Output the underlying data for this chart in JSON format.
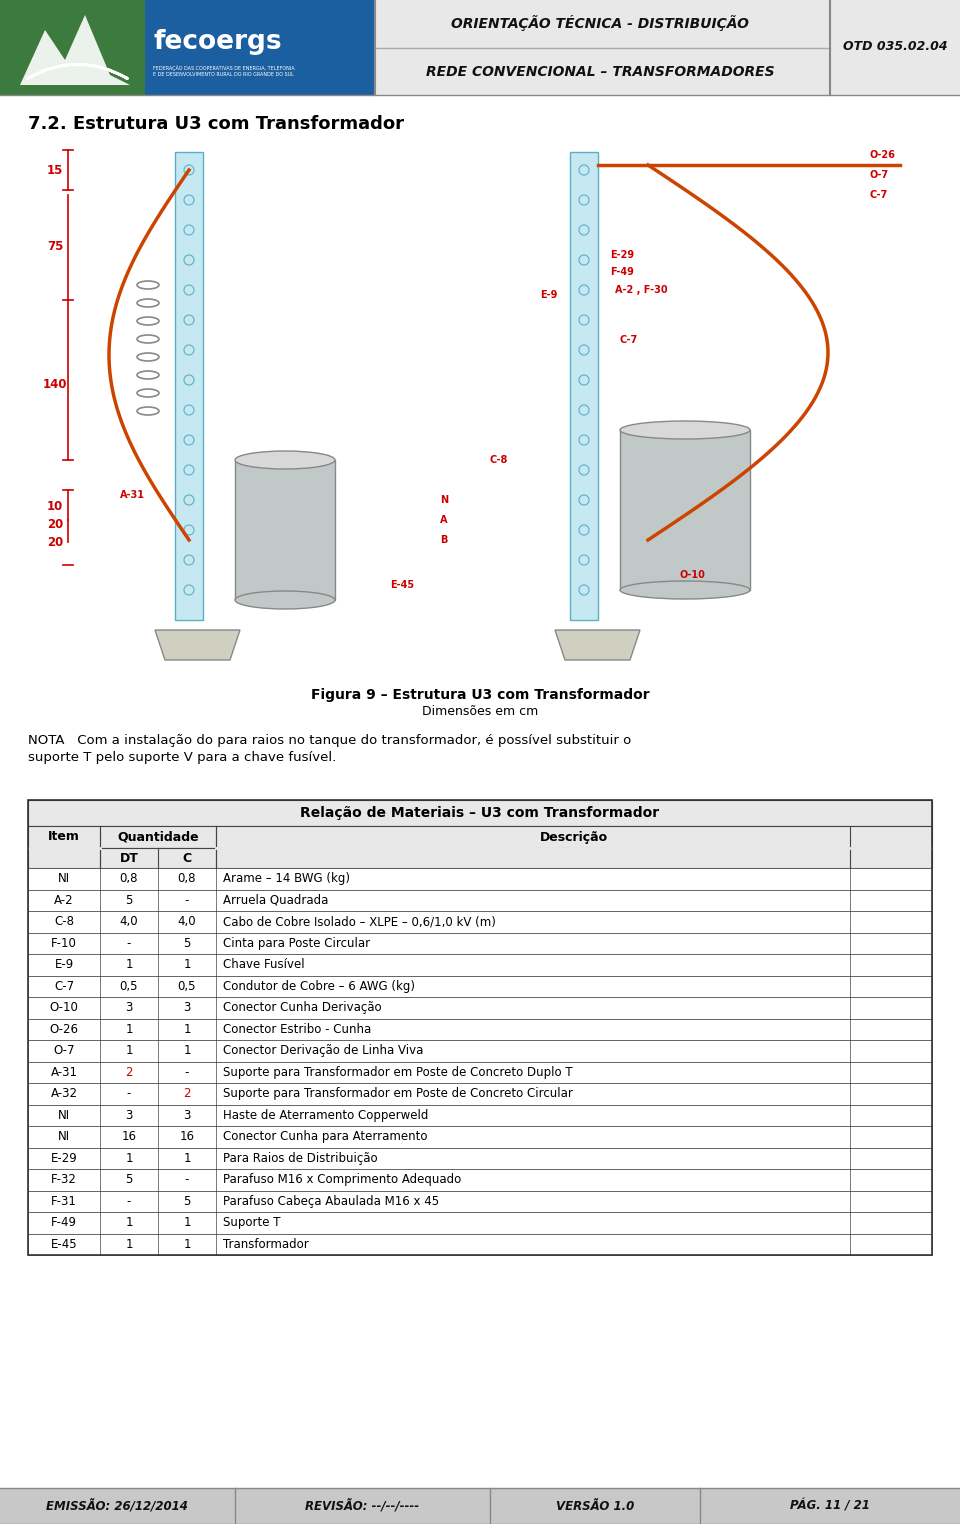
{
  "page_width": 9.6,
  "page_height": 15.24,
  "bg_color": "#ffffff",
  "header": {
    "title1": "ORIENTAÇÃO TÉCNICA - DISTRIBUIÇÃO",
    "title2": "REDE CONVENCIONAL – TRANSFORMADORES",
    "otd": "OTD 035.02.04",
    "green_color": "#3d7a3d",
    "blue_color": "#1c5fa0",
    "mid_bg": "#d8d8d8",
    "right_bg": "#d8d8d8"
  },
  "section_title": "7.2. Estrutura U3 com Transformador",
  "figure_caption1": "Figura 9 – Estrutura U3 com Transformador",
  "figure_caption2": "Dimensões em cm",
  "nota_text": "NOTA   Com a instalação do para raios no tanque do transformador, é possível substituir o suporte T pelo suporte V para a chave fusível.",
  "table_title": "Relação de Materiais – U3 com Transformador",
  "table_rows": [
    [
      "NI",
      "0,8",
      "0,8",
      "Arame – 14 BWG (kg)"
    ],
    [
      "A-2",
      "5",
      "-",
      "Arruela Quadrada"
    ],
    [
      "C-8",
      "4,0",
      "4,0",
      "Cabo de Cobre Isolado – XLPE – 0,6/1,0 kV (m)"
    ],
    [
      "F-10",
      "-",
      "5",
      "Cinta para Poste Circular"
    ],
    [
      "E-9",
      "1",
      "1",
      "Chave Fusível"
    ],
    [
      "C-7",
      "0,5",
      "0,5",
      "Condutor de Cobre – 6 AWG (kg)"
    ],
    [
      "O-10",
      "3",
      "3",
      "Conector Cunha Derivação"
    ],
    [
      "O-26",
      "1",
      "1",
      "Conector Estribo - Cunha"
    ],
    [
      "O-7",
      "1",
      "1",
      "Conector Derivação de Linha Viva"
    ],
    [
      "A-31",
      "2",
      "-",
      "Suporte para Transformador em Poste de Concreto Duplo T"
    ],
    [
      "A-32",
      "-",
      "2",
      "Suporte para Transformador em Poste de Concreto Circular"
    ],
    [
      "NI",
      "3",
      "3",
      "Haste de Aterramento Copperweld"
    ],
    [
      "NI",
      "16",
      "16",
      "Conector Cunha para Aterramento"
    ],
    [
      "E-29",
      "1",
      "1",
      "Para Raios de Distribuição"
    ],
    [
      "F-32",
      "5",
      "-",
      "Parafuso M16 x Comprimento Adequado"
    ],
    [
      "F-31",
      "-",
      "5",
      "Parafuso Cabeça Abaulada M16 x 45"
    ],
    [
      "F-49",
      "1",
      "1",
      "Suporte T"
    ],
    [
      "E-45",
      "1",
      "1",
      "Transformador"
    ]
  ],
  "footer": {
    "bg_color": "#c8c8c8",
    "emissao": "EMISSÃO: 26/12/2014",
    "revisao": "REVISÃO: --/--/----",
    "versao": "VERSÃO 1.0",
    "pagina": "PÁG. 11 / 21"
  },
  "highlight_red": "#cc0000",
  "dim_labels": [
    [
      55,
      175,
      "15"
    ],
    [
      55,
      248,
      "75"
    ],
    [
      55,
      385,
      "140"
    ],
    [
      55,
      510,
      "10"
    ],
    [
      55,
      530,
      "20"
    ],
    [
      55,
      550,
      "20"
    ]
  ]
}
